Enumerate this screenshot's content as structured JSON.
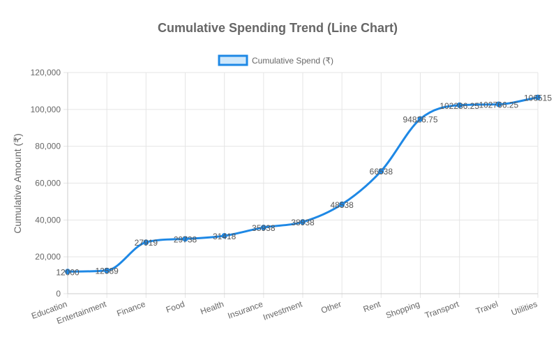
{
  "chart_data": {
    "type": "line",
    "title": "Cumulative Spending Trend (Line Chart)",
    "xlabel": "",
    "ylabel": "Cumulative Amount (₹)",
    "ylim": [
      0,
      120000
    ],
    "yticks": [
      0,
      20000,
      40000,
      60000,
      80000,
      100000,
      120000
    ],
    "ytick_labels": [
      "0",
      "20,000",
      "40,000",
      "60,000",
      "80,000",
      "100,000",
      "120,000"
    ],
    "categories": [
      "Education",
      "Entertainment",
      "Finance",
      "Food",
      "Health",
      "Insurance",
      "Investment",
      "Other",
      "Rent",
      "Shopping",
      "Transport",
      "Travel",
      "Utilities"
    ],
    "series": [
      {
        "name": "Cumulative Spend (₹)",
        "values": [
          12000,
          12589,
          27919,
          29738,
          31418,
          35938,
          38938,
          48538,
          66538,
          94826.75,
          102286.25,
          102766.25,
          106515
        ],
        "data_labels": [
          "12000",
          "12589",
          "27919",
          "29738",
          "31418",
          "35938",
          "38938",
          "48538",
          "66538",
          "94826.75",
          "102286.25",
          "102766.25",
          "106515"
        ]
      }
    ],
    "legend_position": "top-center",
    "grid": true,
    "colors": {
      "line": "#1e88e5",
      "legend_fill": "#cfe8fb",
      "grid": "#e5e5e5",
      "text": "#666666"
    }
  }
}
